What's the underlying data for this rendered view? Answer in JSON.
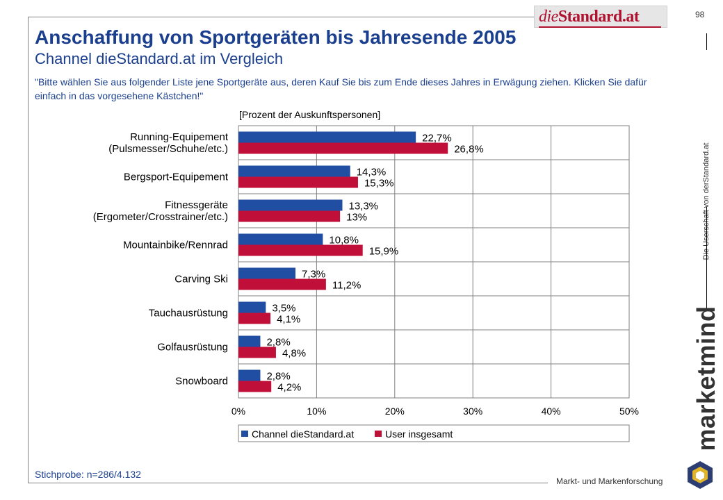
{
  "page": {
    "number": "98",
    "logo_text_italic": "die",
    "logo_text_bold": "Standard.at",
    "title": "Anschaffung von Sportgeräten bis Jahresende 2005",
    "subtitle": "Channel dieStandard.at im Vergleich",
    "question": "\"Bitte wählen Sie aus folgender Liste jene Sportgeräte aus, deren Kauf Sie bis zum Ende dieses Jahres in Erwägung ziehen. Klicken Sie dafür einfach in das vorgesehene Kästchen!\"",
    "sample": "Stichprobe: n=286/4.132",
    "vertical_label": "Die Userschaft von derStandard.at",
    "brand": "marketmind",
    "brand_sub": "Markt- und Markenforschung"
  },
  "colors": {
    "series1": "#1f4ea3",
    "series2": "#c0103a",
    "title": "#1b3f8f",
    "brand_accent": "#b0112f"
  },
  "chart_data": {
    "type": "bar",
    "orientation": "horizontal",
    "unit_label": "[Prozent der Auskunftspersonen]",
    "categories": [
      [
        "Running-Equipement",
        "(Pulsmesser/Schuhe/etc.)"
      ],
      [
        "Bergsport-Equipement"
      ],
      [
        "Fitnessgeräte",
        "(Ergometer/Crosstrainer/etc.)"
      ],
      [
        "Mountainbike/Rennrad"
      ],
      [
        "Carving Ski"
      ],
      [
        "Tauchausrüstung"
      ],
      [
        "Golfausrüstung"
      ],
      [
        "Snowboard"
      ]
    ],
    "series": [
      {
        "name": "Channel dieStandard.at",
        "values": [
          22.7,
          14.3,
          13.3,
          10.8,
          7.3,
          3.5,
          2.8,
          2.8
        ],
        "labels": [
          "22,7%",
          "14,3%",
          "13,3%",
          "10,8%",
          "7,3%",
          "3,5%",
          "2,8%",
          "2,8%"
        ]
      },
      {
        "name": "User insgesamt",
        "values": [
          26.8,
          15.3,
          13,
          15.9,
          11.2,
          4.1,
          4.8,
          4.2
        ],
        "labels": [
          "26,8%",
          "15,3%",
          "13%",
          "15,9%",
          "11,2%",
          "4,1%",
          "4,8%",
          "4,2%"
        ]
      }
    ],
    "xlim": [
      0,
      50
    ],
    "xticks": [
      0,
      10,
      20,
      30,
      40,
      50
    ],
    "xtick_labels": [
      "0%",
      "10%",
      "20%",
      "30%",
      "40%",
      "50%"
    ],
    "grid": true,
    "legend_position": "bottom"
  }
}
